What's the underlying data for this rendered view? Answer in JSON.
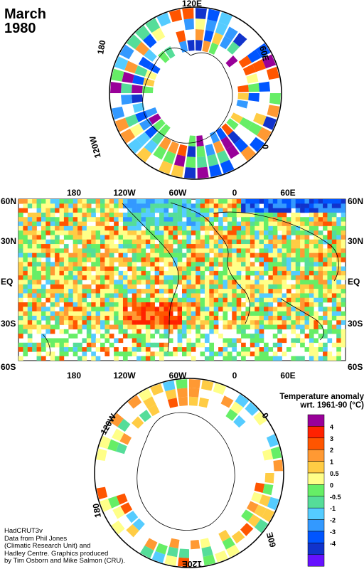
{
  "header": {
    "month": "March",
    "year": "1980"
  },
  "north_polar": {
    "labels": {
      "top": "120E",
      "right": "60E",
      "lower_right": "0",
      "left": "180",
      "lower_left": "120W"
    }
  },
  "map": {
    "top_labels": [
      "180",
      "120W",
      "60W",
      "0",
      "60E"
    ],
    "bottom_labels": [
      "180",
      "120W",
      "60W",
      "0",
      "60E"
    ],
    "left_labels": [
      "60N",
      "30N",
      "EQ",
      "30S",
      "60S"
    ],
    "right_labels": [
      "60N",
      "30N",
      "EQ",
      "30S",
      "60S"
    ]
  },
  "south_polar": {
    "labels": {
      "top_left": "120W",
      "top_right": "0",
      "left": "180",
      "right": "60E",
      "bottom": "120E"
    }
  },
  "legend": {
    "title_line1": "Temperature anomaly",
    "title_line2": "wrt. 1961-90  (°C)",
    "colors": [
      "#990099",
      "#ff2200",
      "#ff5500",
      "#ff9933",
      "#ffcc44",
      "#ffff88",
      "#66ee66",
      "#55dd99",
      "#55ccff",
      "#3399ff",
      "#0055ff",
      "#1133cc",
      "#6611ff"
    ],
    "ticks": [
      "4",
      "3",
      "2",
      "1",
      "0.5",
      "0",
      "-0.5",
      "-1",
      "-2",
      "-3",
      "-4"
    ]
  },
  "credit": {
    "line1": "HadCRUT3v",
    "line2": "Data from Phil Jones",
    "line3": "(Climatic Research Unit) and",
    "line4": "Hadley Centre.  Graphics produced",
    "line5": "by Tim Osborn and Mike Salmon (CRU)."
  }
}
